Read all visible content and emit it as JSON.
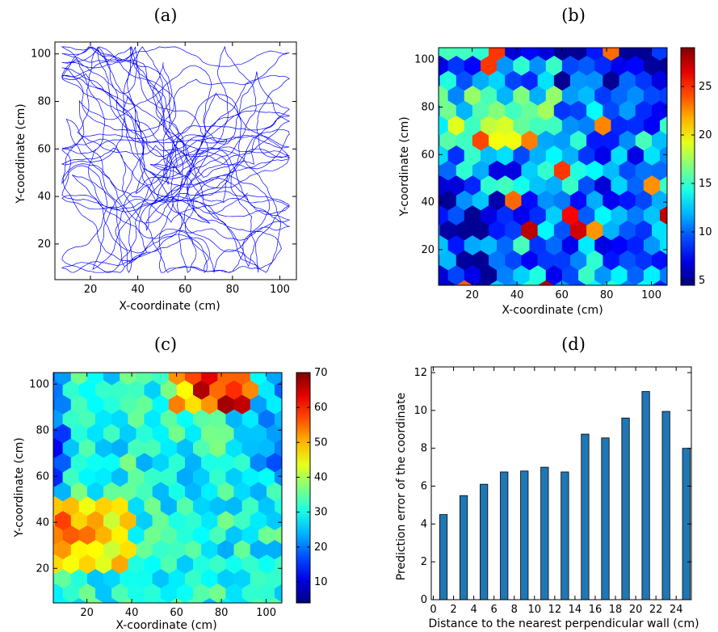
{
  "chart_data": [
    {
      "panel": "a",
      "type": "line",
      "title": "(a)",
      "xlabel": "X-coordinate (cm)",
      "ylabel": "Y-coordinate (cm)",
      "xlim": [
        5,
        107
      ],
      "ylim": [
        5,
        105
      ],
      "xticks": [
        20,
        40,
        60,
        80,
        100
      ],
      "yticks": [
        20,
        40,
        60,
        80,
        100
      ],
      "color": "#0000ff",
      "description": "random-walk trajectory of an animal across the square arena"
    },
    {
      "panel": "b",
      "type": "heatmap",
      "title": "(b)",
      "xlabel": "X-coordinate (cm)",
      "ylabel": "Y-coordinate (cm)",
      "xlim": [
        5,
        107
      ],
      "ylim": [
        5,
        105
      ],
      "xticks": [
        20,
        40,
        60,
        80,
        100
      ],
      "yticks": [
        20,
        40,
        60,
        80,
        100
      ],
      "colorbar_range": [
        4.5,
        29
      ],
      "colorbar_ticks": [
        5,
        10,
        15,
        20,
        25
      ],
      "colormap": "jet",
      "description": "hexbin map of prediction error; mostly 8-18 with hot spots near edges"
    },
    {
      "panel": "c",
      "type": "heatmap",
      "title": "(c)",
      "xlabel": "X-coordinate (cm)",
      "ylabel": "Y-coordinate (cm)",
      "xlim": [
        5,
        107
      ],
      "ylim": [
        5,
        105
      ],
      "xticks": [
        20,
        40,
        60,
        80,
        100
      ],
      "yticks": [
        20,
        40,
        60,
        80,
        100
      ],
      "colorbar_range": [
        4,
        70
      ],
      "colorbar_ticks": [
        10,
        20,
        30,
        40,
        50,
        60,
        70
      ],
      "colormap": "jet",
      "description": "hexbin map; high values near top-right and lower-left regions"
    },
    {
      "panel": "d",
      "type": "bar",
      "title": "(d)",
      "xlabel": "Distance to the nearest perpendicular wall (cm)",
      "ylabel": "Prediction error of the coordinate",
      "xlim": [
        -0.2,
        25.5
      ],
      "ylim": [
        0,
        12.3
      ],
      "xticks": [
        0,
        2,
        4,
        6,
        8,
        10,
        12,
        14,
        16,
        18,
        20,
        22,
        24
      ],
      "yticks": [
        0,
        2,
        4,
        6,
        8,
        10,
        12
      ],
      "bar_color": "#1f77b4",
      "x": [
        1,
        3,
        5,
        7,
        9,
        11,
        13,
        15,
        17,
        19,
        21,
        23,
        25
      ],
      "values": [
        4.5,
        5.5,
        6.1,
        6.75,
        6.8,
        7.0,
        6.75,
        8.75,
        8.55,
        9.6,
        11.0,
        9.95,
        8.0
      ]
    }
  ]
}
